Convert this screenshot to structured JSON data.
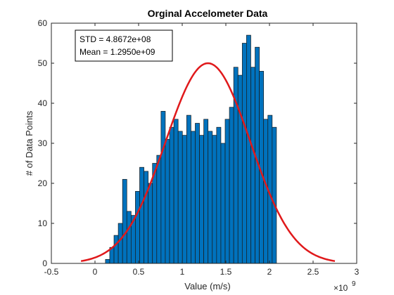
{
  "chart_data": {
    "type": "bar",
    "title": "Orginal Accelometer Data",
    "xlabel": "Value (m/s)",
    "ylabel": "# of Data Points",
    "x_exponent_label": "×10",
    "x_exponent_power": "9",
    "xlim": [
      -0.5,
      3.0
    ],
    "ylim": [
      0,
      60
    ],
    "x_ticks": [
      -0.5,
      0,
      0.5,
      1,
      1.5,
      2,
      2.5,
      3
    ],
    "x_tick_labels": [
      "-0.5",
      "0",
      "0.5",
      "1",
      "1.5",
      "2",
      "2.5",
      "3"
    ],
    "y_ticks": [
      0,
      10,
      20,
      30,
      40,
      50,
      60
    ],
    "y_tick_labels": [
      "0",
      "10",
      "20",
      "30",
      "40",
      "50",
      "60"
    ],
    "grid": false,
    "histogram": {
      "bin_edges": [
        0.12,
        0.169,
        0.218,
        0.267,
        0.316,
        0.365,
        0.414,
        0.463,
        0.512,
        0.561,
        0.61,
        0.659,
        0.708,
        0.757,
        0.806,
        0.855,
        0.904,
        0.953,
        1.002,
        1.051,
        1.1,
        1.149,
        1.198,
        1.247,
        1.296,
        1.345,
        1.394,
        1.443,
        1.492,
        1.541,
        1.59,
        1.639,
        1.688,
        1.737,
        1.786,
        1.835,
        1.884,
        1.933,
        1.982,
        2.031,
        2.08
      ],
      "counts": [
        1,
        4,
        7,
        10,
        21,
        13,
        12,
        18,
        24,
        23,
        20,
        25,
        27,
        38,
        31,
        34,
        36,
        33,
        32,
        37,
        33,
        35,
        32,
        36,
        33,
        32,
        34,
        30,
        36,
        39,
        49,
        47,
        55,
        57,
        49,
        54,
        48,
        36,
        37,
        34
      ],
      "color": "#0072BD",
      "edge_color": "#1a1a1a"
    },
    "fit_curve": {
      "type": "normal",
      "mean": 1.295,
      "std": 0.48672,
      "peak": 50,
      "x_range": [
        -0.16,
        2.75
      ],
      "color": "#E0191B"
    },
    "annotation": {
      "lines": [
        "STD = 4.8672e+08",
        "Mean = 1.2950e+09"
      ],
      "placement": "top-left"
    }
  }
}
